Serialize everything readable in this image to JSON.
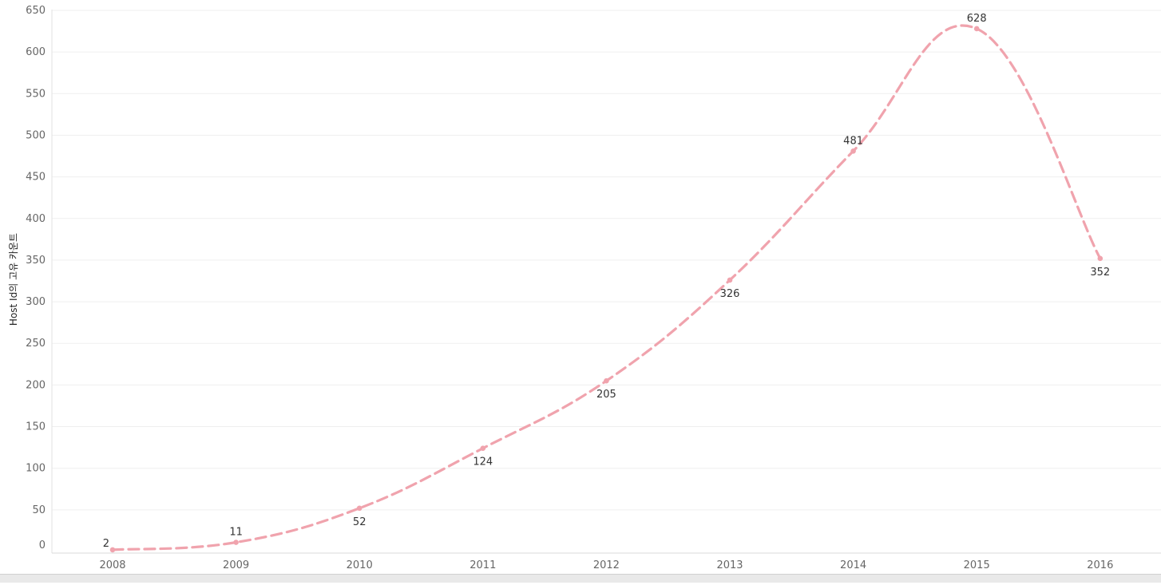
{
  "chart_data": {
    "type": "line",
    "title": "",
    "xlabel": "",
    "ylabel": "Host Id의 고유 카운트",
    "categories": [
      "2008",
      "2009",
      "2010",
      "2011",
      "2012",
      "2013",
      "2014",
      "2015",
      "2016"
    ],
    "series": [
      {
        "values": [
          2,
          11,
          52,
          124,
          205,
          326,
          481,
          628,
          352
        ],
        "color": "#f0a3ad",
        "line_style": "dashed"
      }
    ],
    "yticks": [
      "0",
      "50",
      "100",
      "150",
      "200",
      "250",
      "300",
      "350",
      "400",
      "450",
      "500",
      "550",
      "600",
      "650"
    ],
    "ylim": [
      0,
      650
    ],
    "grid": true,
    "legend": "none",
    "data_labels": [
      "2",
      "11",
      "52",
      "124",
      "205",
      "326",
      "481",
      "628",
      "352"
    ],
    "label_positions": [
      "left",
      "above",
      "below",
      "below",
      "below",
      "below",
      "above",
      "above",
      "below"
    ]
  }
}
